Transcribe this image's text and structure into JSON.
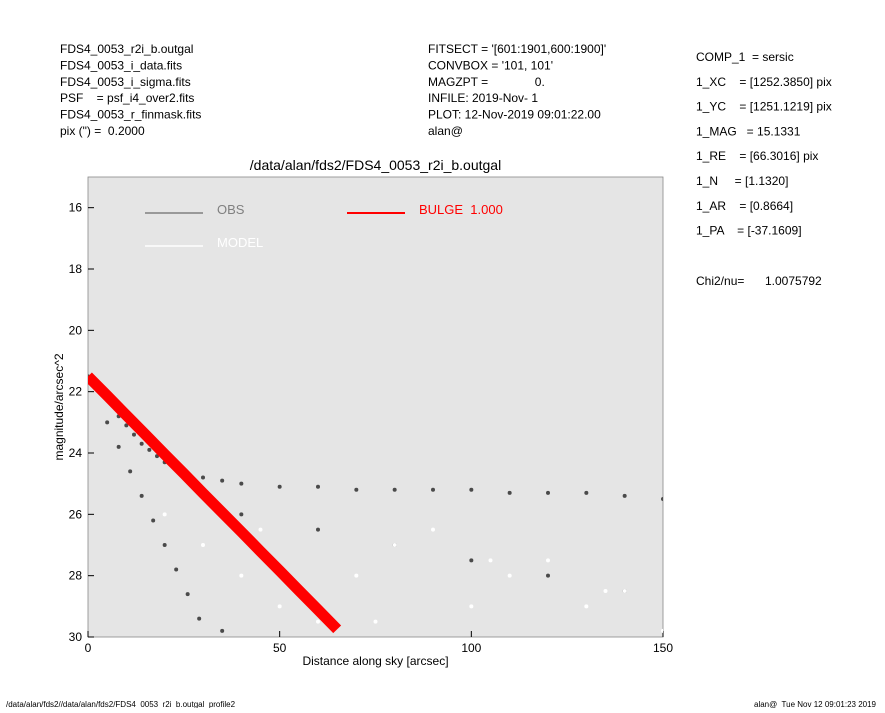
{
  "header_left": [
    "FDS4_0053_r2i_b.outgal",
    "FDS4_0053_i_data.fits",
    "FDS4_0053_i_sigma.fits",
    "PSF    = psf_i4_over2.fits",
    "FDS4_0053_r_finmask.fits",
    "pix (\") =  0.2000"
  ],
  "header_middle": [
    "FITSECT = '[601:1901,600:1900]'",
    "CONVBOX = '101, 101'",
    "MAGZPT =              0.",
    "INFILE: 2019-Nov- 1",
    "PLOT: 12-Nov-2019 09:01:22.00",
    "alan@"
  ],
  "header_right": [
    "COMP_1  = sersic",
    "1_XC    = [1252.3850] pix",
    "1_YC    = [1251.1219] pix",
    "1_MAG   = 15.1331",
    "1_RE    = [66.3016] pix",
    "1_N     = [1.1320]",
    "1_AR    = [0.8664]",
    "1_PA    = [-37.1609]"
  ],
  "chi_label": "Chi2/nu=",
  "chi_value": "1.0075792",
  "footer_left": "/data/alan/fds2//data/alan/fds2/FDS4_0053_r2i_b.outgal_profile2",
  "footer_right": "alan@  Tue Nov 12 09:01:23 2019",
  "chart_data": {
    "type": "scatter",
    "title": "/data/alan/fds2/FDS4_0053_r2i_b.outgal",
    "xlabel": "Distance along sky [arcsec]",
    "ylabel": "magnitude/arcsec^2",
    "xlim": [
      0,
      150
    ],
    "ylim": [
      30,
      15
    ],
    "xticks": [
      0,
      50,
      100,
      150
    ],
    "yticks": [
      16,
      18,
      20,
      22,
      24,
      26,
      28,
      30
    ],
    "background": "#e5e5e5",
    "series": [
      {
        "name": "OBS",
        "color": "#808080",
        "point_color": "#4a4a4a",
        "x": [
          0,
          2,
          4,
          6,
          8,
          10,
          12,
          14,
          16,
          18,
          20,
          25,
          30,
          35,
          40,
          50,
          60,
          70,
          80,
          90,
          100,
          110,
          120,
          130,
          140,
          150,
          5,
          8,
          11,
          14,
          17,
          20,
          23,
          26,
          29,
          35,
          40,
          60,
          80,
          100,
          120,
          140
        ],
        "y": [
          21.5,
          21.8,
          22.1,
          22.4,
          22.8,
          23.1,
          23.4,
          23.7,
          23.9,
          24.1,
          24.3,
          24.6,
          24.8,
          24.9,
          25.0,
          25.1,
          25.1,
          25.2,
          25.2,
          25.2,
          25.2,
          25.3,
          25.3,
          25.3,
          25.4,
          25.5,
          23.0,
          23.8,
          24.6,
          25.4,
          26.2,
          27.0,
          27.8,
          28.6,
          29.4,
          29.8,
          26.0,
          26.5,
          27.0,
          27.5,
          28.0,
          28.5
        ]
      },
      {
        "name": "MODEL",
        "color": "#ffffff",
        "point_color": "#ffffff",
        "x": [
          20,
          30,
          40,
          50,
          60,
          70,
          80,
          90,
          100,
          110,
          120,
          130,
          140,
          150,
          45,
          75,
          105,
          135
        ],
        "y": [
          26,
          27,
          28,
          29,
          29.5,
          28,
          27,
          26.5,
          29,
          28,
          27.5,
          29,
          28.5,
          29.8,
          26.5,
          29.5,
          27.5,
          28.5
        ]
      },
      {
        "name": "BULGE  1.000",
        "color": "#ff0000",
        "point_color": "#ff0000",
        "mode": "line",
        "x": [
          0,
          5,
          10,
          15,
          20,
          25,
          30,
          35,
          40,
          45,
          50,
          55,
          60,
          65
        ],
        "y": [
          21.5,
          22.13,
          22.77,
          23.4,
          24.04,
          24.67,
          25.31,
          25.94,
          26.57,
          27.21,
          27.84,
          28.48,
          29.11,
          29.75
        ]
      }
    ]
  }
}
